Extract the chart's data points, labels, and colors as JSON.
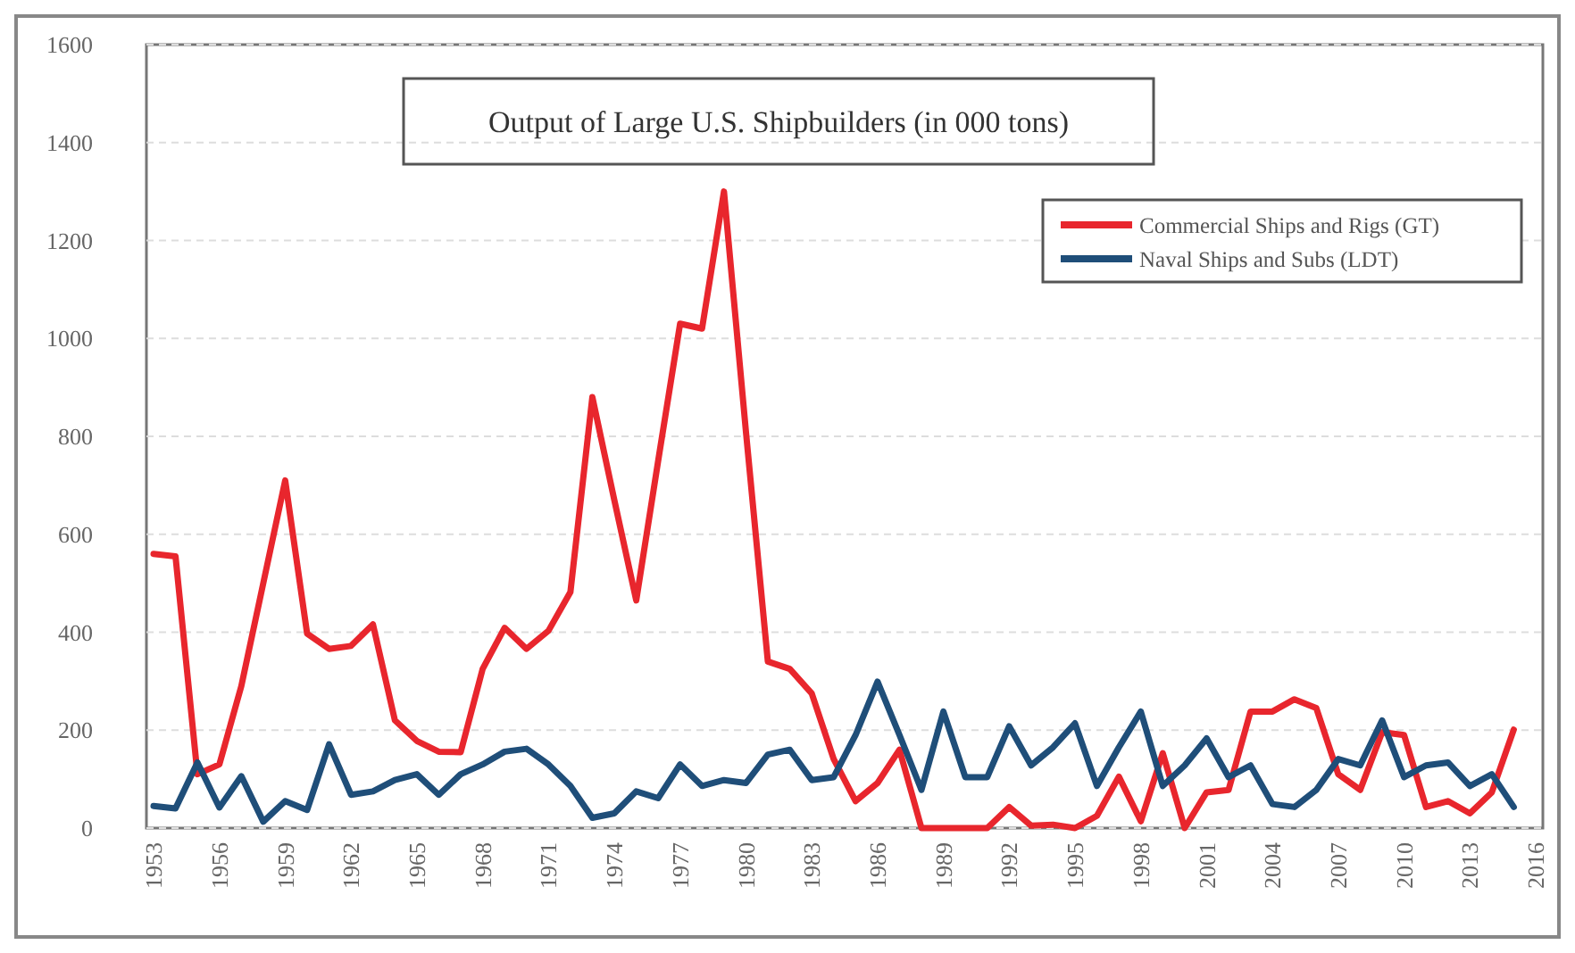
{
  "chart_data": {
    "type": "line",
    "title": "Output of Large U.S. Shipbuilders (in 000 tons)",
    "categories": [
      "1953",
      null,
      null,
      "1956",
      null,
      null,
      "1959",
      null,
      null,
      "1962",
      null,
      null,
      "1965",
      null,
      null,
      "1968",
      null,
      null,
      "1971",
      null,
      null,
      "1974",
      null,
      null,
      "1977",
      null,
      null,
      "1980",
      null,
      null,
      "1983",
      null,
      null,
      "1986",
      null,
      null,
      "1989",
      null,
      null,
      "1992",
      null,
      null,
      "1995",
      null,
      null,
      "1998",
      null,
      null,
      "2001",
      null,
      null,
      "2004",
      null,
      null,
      "2007",
      null,
      null,
      "2010",
      null,
      null,
      "2013",
      null,
      null,
      "2016"
    ],
    "series": [
      {
        "name": "Commercial Ships and Rigs (GT)",
        "color": "#e8262d",
        "values": [
          560,
          555,
          110,
          130,
          290,
          500,
          710,
          397,
          366,
          372,
          416,
          220,
          178,
          156,
          155,
          325,
          409,
          366,
          403,
          482,
          880,
          670,
          465,
          750,
          1030,
          1020,
          1300,
          810,
          340,
          325,
          275,
          141,
          55,
          92,
          160,
          0,
          0,
          0,
          0,
          43,
          5,
          7,
          0,
          25,
          105,
          14,
          153,
          0,
          73,
          78,
          238,
          238,
          263,
          245,
          110,
          78,
          196,
          190,
          43,
          55,
          30,
          73,
          201,
          null
        ]
      },
      {
        "name": "Naval Ships and Subs (LDT)",
        "color": "#1f4e79",
        "values": [
          45,
          40,
          134,
          42,
          106,
          13,
          55,
          37,
          171,
          68,
          75,
          98,
          110,
          68,
          110,
          130,
          156,
          162,
          130,
          86,
          21,
          30,
          75,
          61,
          130,
          86,
          98,
          92,
          150,
          160,
          98,
          104,
          190,
          299,
          190,
          78,
          238,
          104,
          104,
          208,
          128,
          165,
          214,
          86,
          165,
          238,
          86,
          128,
          183,
          104,
          128,
          49,
          43,
          78,
          141,
          128,
          220,
          104,
          128,
          134,
          86,
          110,
          43,
          null
        ]
      }
    ],
    "ylim": [
      0,
      1600
    ],
    "yticks": [
      0,
      200,
      400,
      600,
      800,
      1000,
      1200,
      1400,
      1600
    ],
    "grid": "y",
    "legend": "top right",
    "line_style": "solid",
    "marker": "none"
  }
}
